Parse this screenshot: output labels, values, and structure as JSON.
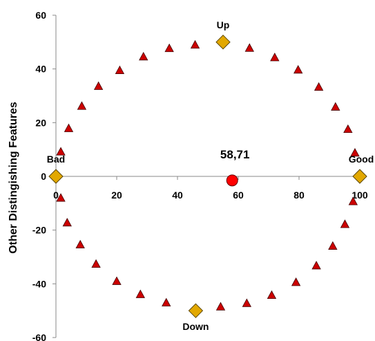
{
  "chart_data": {
    "type": "scatter",
    "ylabel": "Other Distingishing Features",
    "xlabel": "",
    "xlim": [
      0,
      100
    ],
    "ylim": [
      -60,
      60
    ],
    "x_ticks": [
      "0",
      "20",
      "40",
      "60",
      "80",
      "100"
    ],
    "y_ticks": [
      "60",
      "40",
      "20",
      "0",
      "-20",
      "-40",
      "-60"
    ],
    "grid": false,
    "series": [
      {
        "marker": "triangle",
        "color": "#cc0000",
        "points": [
          [
            45.8,
            49.0
          ],
          [
            37.3,
            47.7
          ],
          [
            28.8,
            44.6
          ],
          [
            21.0,
            39.5
          ],
          [
            14.0,
            33.6
          ],
          [
            8.5,
            26.2
          ],
          [
            4.2,
            17.9
          ],
          [
            1.6,
            9.2
          ],
          [
            1.6,
            -8.0
          ],
          [
            3.7,
            -17.2
          ],
          [
            8.0,
            -25.4
          ],
          [
            13.2,
            -32.6
          ],
          [
            20.0,
            -39.0
          ],
          [
            27.8,
            -43.9
          ],
          [
            36.3,
            -47.0
          ],
          [
            54.2,
            -48.5
          ],
          [
            62.8,
            -47.2
          ],
          [
            71.0,
            -44.2
          ],
          [
            79.0,
            -39.4
          ],
          [
            85.7,
            -33.2
          ],
          [
            91.1,
            -25.9
          ],
          [
            95.1,
            -17.8
          ],
          [
            97.8,
            -9.3
          ],
          [
            98.4,
            8.8
          ],
          [
            96.1,
            17.6
          ],
          [
            92.0,
            25.9
          ],
          [
            86.5,
            33.3
          ],
          [
            79.7,
            39.7
          ],
          [
            72.0,
            44.3
          ],
          [
            63.7,
            47.8
          ]
        ]
      },
      {
        "marker": "diamond",
        "color": "#e2a800",
        "points": [
          [
            55,
            50
          ],
          [
            100,
            0
          ],
          [
            46,
            -50
          ],
          [
            0,
            0
          ]
        ]
      },
      {
        "marker": "circle",
        "color": "#ff0000",
        "points": [
          [
            58,
            -1.5
          ]
        ]
      }
    ],
    "annotations": [
      {
        "text": "Up",
        "x": 55,
        "y": 50
      },
      {
        "text": "Down",
        "x": 46,
        "y": -50
      },
      {
        "text": "Bad",
        "x": 0,
        "y": 0
      },
      {
        "text": "Good",
        "x": 100,
        "y": 0
      },
      {
        "text": "58,71",
        "x": 58,
        "y": 0
      }
    ]
  }
}
